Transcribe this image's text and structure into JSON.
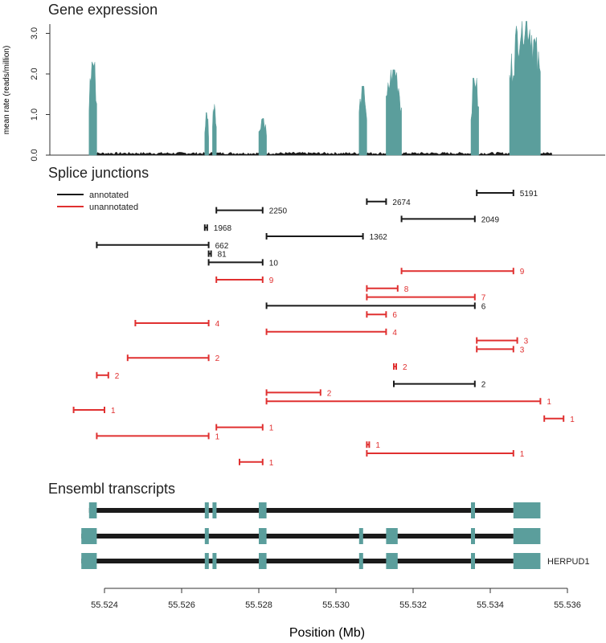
{
  "colors": {
    "teal": "#5b9e9c",
    "annotated": "#1a1a1a",
    "unannotated": "#e03030",
    "black": "#1a1a1a"
  },
  "chart_data": [
    {
      "type": "area",
      "title": "Gene expression",
      "ylabel": "mean rate (reads/million)",
      "ylim": [
        0,
        3.3
      ],
      "yticks": [
        "0.0",
        "1.0",
        "2.0",
        "3.0"
      ],
      "xlim": [
        55.5228,
        55.5363
      ],
      "exon_peaks": [
        {
          "start": 55.5236,
          "end": 55.5238,
          "height": 2.3
        },
        {
          "start": 55.5266,
          "end": 55.5267,
          "height": 1.05
        },
        {
          "start": 55.5268,
          "end": 55.5269,
          "height": 1.3
        },
        {
          "start": 55.528,
          "end": 55.5282,
          "height": 0.92
        },
        {
          "start": 55.5306,
          "end": 55.5308,
          "height": 1.7
        },
        {
          "start": 55.5313,
          "end": 55.5317,
          "height": 2.1
        },
        {
          "start": 55.5335,
          "end": 55.5337,
          "height": 1.9
        },
        {
          "start": 55.5345,
          "end": 55.5353,
          "height": 3.3
        }
      ]
    },
    {
      "type": "scatter",
      "title": "Splice junctions",
      "legend": [
        {
          "label": "annotated",
          "kind": "annotated"
        },
        {
          "label": "unannotated",
          "kind": "unannotated"
        }
      ],
      "junctions": [
        {
          "start": 55.53365,
          "end": 55.5346,
          "count": "5191",
          "kind": "annotated"
        },
        {
          "start": 55.5308,
          "end": 55.5313,
          "count": "2674",
          "kind": "annotated"
        },
        {
          "start": 55.5269,
          "end": 55.5281,
          "count": "2250",
          "kind": "annotated"
        },
        {
          "start": 55.5317,
          "end": 55.5336,
          "count": "2049",
          "kind": "annotated"
        },
        {
          "start": 55.5266,
          "end": 55.52665,
          "count": "1968",
          "kind": "annotated"
        },
        {
          "start": 55.5282,
          "end": 55.5307,
          "count": "1362",
          "kind": "annotated"
        },
        {
          "start": 55.5238,
          "end": 55.5267,
          "count": "662",
          "kind": "annotated"
        },
        {
          "start": 55.5267,
          "end": 55.52675,
          "count": "81",
          "kind": "annotated"
        },
        {
          "start": 55.5267,
          "end": 55.5281,
          "count": "10",
          "kind": "annotated"
        },
        {
          "start": 55.5317,
          "end": 55.5346,
          "count": "9",
          "kind": "unannotated"
        },
        {
          "start": 55.5269,
          "end": 55.5281,
          "count": "9",
          "kind": "unannotated"
        },
        {
          "start": 55.5308,
          "end": 55.5316,
          "count": "8",
          "kind": "unannotated"
        },
        {
          "start": 55.5308,
          "end": 55.5336,
          "count": "7",
          "kind": "unannotated"
        },
        {
          "start": 55.5282,
          "end": 55.5336,
          "count": "6",
          "kind": "annotated"
        },
        {
          "start": 55.5308,
          "end": 55.5313,
          "count": "6",
          "kind": "unannotated"
        },
        {
          "start": 55.5248,
          "end": 55.5267,
          "count": "4",
          "kind": "unannotated"
        },
        {
          "start": 55.5282,
          "end": 55.5313,
          "count": "4",
          "kind": "unannotated"
        },
        {
          "start": 55.53365,
          "end": 55.5347,
          "count": "3",
          "kind": "unannotated"
        },
        {
          "start": 55.53365,
          "end": 55.5346,
          "count": "3",
          "kind": "unannotated"
        },
        {
          "start": 55.5246,
          "end": 55.5267,
          "count": "2",
          "kind": "unannotated"
        },
        {
          "start": 55.5315,
          "end": 55.53155,
          "count": "2",
          "kind": "unannotated"
        },
        {
          "start": 55.5238,
          "end": 55.5241,
          "count": "2",
          "kind": "unannotated"
        },
        {
          "start": 55.5315,
          "end": 55.5336,
          "count": "2",
          "kind": "annotated"
        },
        {
          "start": 55.5282,
          "end": 55.5296,
          "count": "2",
          "kind": "unannotated"
        },
        {
          "start": 55.5282,
          "end": 55.5353,
          "count": "1",
          "kind": "unannotated"
        },
        {
          "start": 55.5232,
          "end": 55.524,
          "count": "1",
          "kind": "unannotated"
        },
        {
          "start": 55.5354,
          "end": 55.5359,
          "count": "1",
          "kind": "unannotated"
        },
        {
          "start": 55.5269,
          "end": 55.5281,
          "count": "1",
          "kind": "unannotated"
        },
        {
          "start": 55.5238,
          "end": 55.5267,
          "count": "1",
          "kind": "unannotated"
        },
        {
          "start": 55.5308,
          "end": 55.53085,
          "count": "1",
          "kind": "unannotated"
        },
        {
          "start": 55.5308,
          "end": 55.5346,
          "count": "1",
          "kind": "unannotated"
        },
        {
          "start": 55.5275,
          "end": 55.5281,
          "count": "1",
          "kind": "unannotated"
        }
      ]
    },
    {
      "type": "bar",
      "title": "Ensembl transcripts",
      "gene_label": "HERPUD1",
      "xlabel": "Position (Mb)",
      "xticks": [
        "55.524",
        "55.526",
        "55.528",
        "55.530",
        "55.532",
        "55.534",
        "55.536"
      ],
      "transcripts": [
        {
          "span": [
            55.5236,
            55.5346
          ],
          "exons": [
            [
              55.5236,
              55.5238
            ],
            [
              55.5266,
              55.5267
            ],
            [
              55.5268,
              55.5269
            ],
            [
              55.528,
              55.5282
            ],
            [
              55.5335,
              55.5336
            ],
            [
              55.5346,
              55.5353
            ]
          ]
        },
        {
          "span": [
            55.5234,
            55.5346
          ],
          "exons": [
            [
              55.5234,
              55.5238
            ],
            [
              55.5266,
              55.5267
            ],
            [
              55.528,
              55.5282
            ],
            [
              55.5306,
              55.5307
            ],
            [
              55.5313,
              55.5316
            ],
            [
              55.5335,
              55.5336
            ],
            [
              55.5346,
              55.5353
            ]
          ]
        },
        {
          "span": [
            55.5234,
            55.5346
          ],
          "exons": [
            [
              55.5234,
              55.5238
            ],
            [
              55.5266,
              55.5267
            ],
            [
              55.5268,
              55.5269
            ],
            [
              55.528,
              55.5282
            ],
            [
              55.5306,
              55.5307
            ],
            [
              55.5313,
              55.5316
            ],
            [
              55.5335,
              55.5336
            ],
            [
              55.5346,
              55.5353
            ]
          ]
        }
      ]
    }
  ]
}
